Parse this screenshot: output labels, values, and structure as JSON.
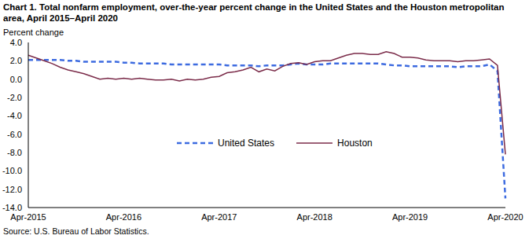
{
  "chart_data": {
    "type": "line",
    "title": "Chart 1. Total nonfarm employment, over-the-year percent change in the United  States and the Houston metropolitan area, April 2015–April 2020",
    "y_label": "Percent change",
    "source": "Source: U.S. Bureau of Labor Statistics.",
    "categories": [
      "Apr-2015",
      null,
      null,
      null,
      null,
      null,
      null,
      null,
      null,
      null,
      null,
      null,
      "Apr-2016",
      null,
      null,
      null,
      null,
      null,
      null,
      null,
      null,
      null,
      null,
      null,
      "Apr-2017",
      null,
      null,
      null,
      null,
      null,
      null,
      null,
      null,
      null,
      null,
      null,
      "Apr-2018",
      null,
      null,
      null,
      null,
      null,
      null,
      null,
      null,
      null,
      null,
      null,
      "Apr-2019",
      null,
      null,
      null,
      null,
      null,
      null,
      null,
      null,
      null,
      null,
      null,
      "Apr-2020"
    ],
    "series": [
      {
        "name": "United States",
        "color": "#3d6be0",
        "line_style": "dashed",
        "values": [
          2.1,
          2.1,
          2.1,
          2.1,
          2.1,
          2.0,
          2.0,
          1.9,
          1.9,
          1.9,
          1.9,
          1.9,
          1.8,
          1.8,
          1.7,
          1.7,
          1.7,
          1.7,
          1.6,
          1.6,
          1.6,
          1.6,
          1.6,
          1.6,
          1.6,
          1.5,
          1.5,
          1.5,
          1.5,
          1.4,
          1.5,
          1.5,
          1.5,
          1.6,
          1.7,
          1.6,
          1.6,
          1.6,
          1.7,
          1.7,
          1.7,
          1.7,
          1.7,
          1.7,
          1.7,
          1.6,
          1.5,
          1.5,
          1.4,
          1.4,
          1.4,
          1.4,
          1.4,
          1.4,
          1.3,
          1.4,
          1.4,
          1.4,
          1.6,
          0.9,
          -13.0
        ]
      },
      {
        "name": "Houston",
        "color": "#7b2c4a",
        "line_style": "solid",
        "values": [
          2.6,
          2.3,
          2.0,
          1.7,
          1.3,
          1.0,
          0.8,
          0.6,
          0.3,
          0.0,
          0.1,
          0.0,
          0.1,
          0.0,
          0.1,
          0.0,
          -0.1,
          -0.1,
          0.0,
          -0.2,
          0.0,
          -0.1,
          0.0,
          0.2,
          0.3,
          0.7,
          0.8,
          1.0,
          1.3,
          0.8,
          1.1,
          0.9,
          1.4,
          1.7,
          1.8,
          1.6,
          1.9,
          2.0,
          2.0,
          2.3,
          2.6,
          2.8,
          2.8,
          2.7,
          2.7,
          3.0,
          2.8,
          2.4,
          2.4,
          2.3,
          2.1,
          2.0,
          2.0,
          2.0,
          1.9,
          2.0,
          2.0,
          2.1,
          2.2,
          1.5,
          -8.2
        ]
      }
    ],
    "ylim": [
      -14,
      4
    ],
    "yticks": [
      {
        "value": -14,
        "label": "-14.0"
      },
      {
        "value": -12,
        "label": "-12.0"
      },
      {
        "value": -10,
        "label": "-10.0"
      },
      {
        "value": -8,
        "label": "-8.0"
      },
      {
        "value": -6,
        "label": "-6.0"
      },
      {
        "value": -4,
        "label": "-4.0"
      },
      {
        "value": -2,
        "label": "-2.0"
      },
      {
        "value": 0,
        "label": "0.0"
      },
      {
        "value": 2,
        "label": "2.0"
      },
      {
        "value": 4,
        "label": "4.0"
      }
    ],
    "grid": false
  }
}
